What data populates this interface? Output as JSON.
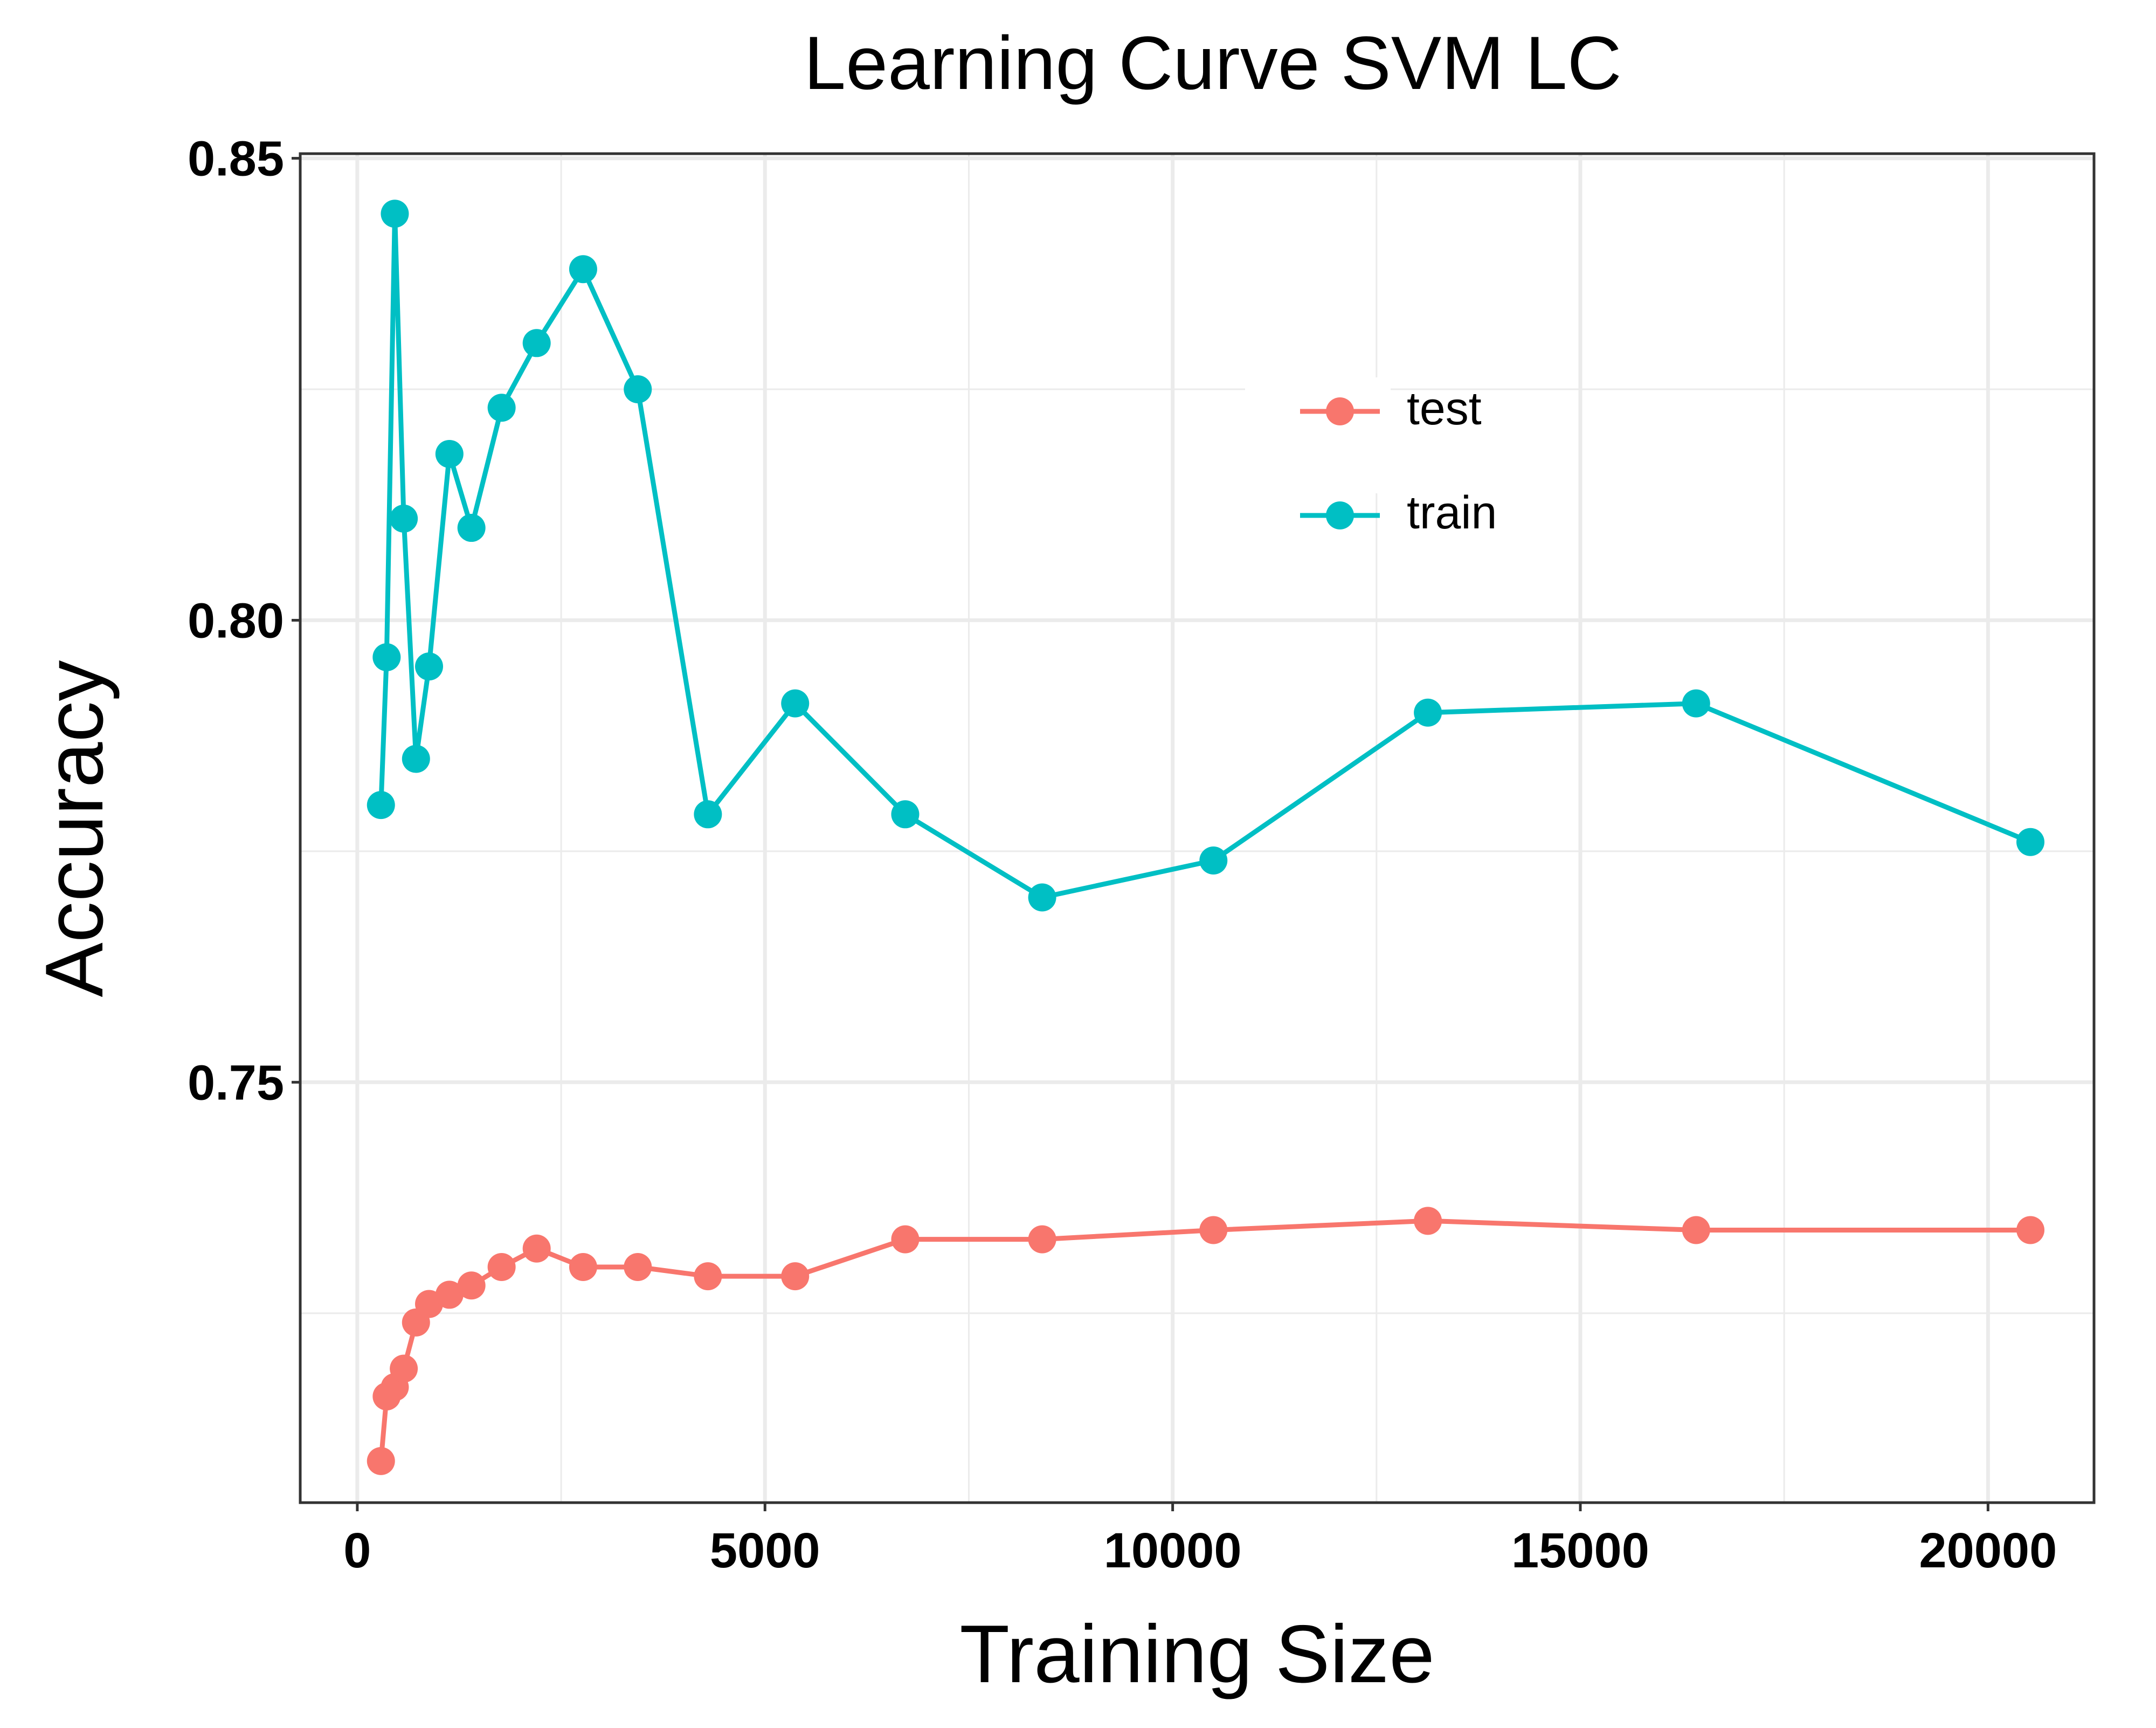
{
  "chart_data": {
    "type": "line",
    "title": "Learning Curve SVM LC",
    "xlabel": "Training Size",
    "ylabel": "Accuracy",
    "xlim": [
      -700,
      21300
    ],
    "ylim": [
      0.7045,
      0.8505
    ],
    "x_ticks": [
      0,
      5000,
      10000,
      15000,
      20000
    ],
    "x_tick_labels": [
      "0",
      "5000",
      "10000",
      "15000",
      "20000"
    ],
    "y_ticks": [
      0.75,
      0.8,
      0.85
    ],
    "y_tick_labels": [
      "0.75",
      "0.80",
      "0.85"
    ],
    "grid": true,
    "legend_position": "top-right",
    "series": [
      {
        "name": "test",
        "color": "#F8766D",
        "x": [
          290,
          360,
          460,
          570,
          720,
          880,
          1130,
          1400,
          1770,
          2200,
          2770,
          3440,
          4300,
          5370,
          6720,
          8400,
          10500,
          13130,
          16420,
          20520
        ],
        "y": [
          0.709,
          0.716,
          0.717,
          0.719,
          0.724,
          0.726,
          0.727,
          0.728,
          0.73,
          0.732,
          0.73,
          0.73,
          0.729,
          0.729,
          0.733,
          0.733,
          0.734,
          0.735,
          0.734,
          0.734
        ]
      },
      {
        "name": "train",
        "color": "#00BFC4",
        "x": [
          290,
          360,
          460,
          570,
          720,
          880,
          1130,
          1400,
          1770,
          2200,
          2770,
          3440,
          4300,
          5370,
          6720,
          8400,
          10500,
          13130,
          16420,
          20520
        ],
        "y": [
          0.78,
          0.796,
          0.844,
          0.811,
          0.785,
          0.795,
          0.818,
          0.81,
          0.823,
          0.83,
          0.838,
          0.825,
          0.779,
          0.791,
          0.779,
          0.77,
          0.774,
          0.79,
          0.791,
          0.776
        ]
      }
    ]
  }
}
